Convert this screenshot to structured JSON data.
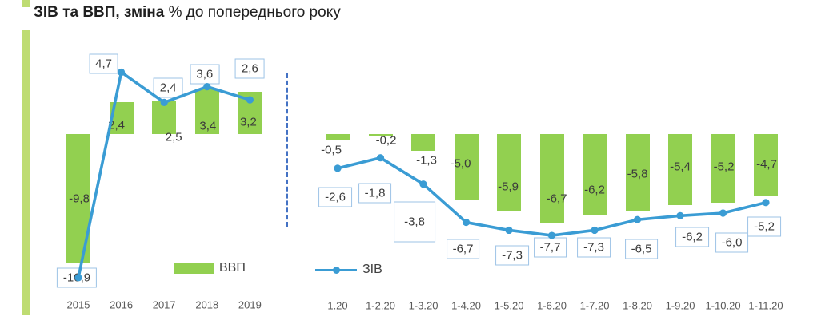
{
  "title": {
    "bold": "ЗІВ та ВВП, зміна",
    "regular": " % до попереднього року"
  },
  "legend": {
    "bars": "ВВП",
    "line": "ЗІВ"
  },
  "colors": {
    "bar_green": "#92D050",
    "accent_green": "#BEDC72",
    "line_blue": "#3A9CD4",
    "label_box_border": "#9DC3E6",
    "divider_blue": "#4472C4"
  },
  "chart_data": [
    {
      "type": "bar",
      "note": "combined bar+line, yearly panel",
      "unit": "%",
      "ylim": [
        -12,
        6
      ],
      "grid": false,
      "categories": [
        "2015",
        "2016",
        "2017",
        "2018",
        "2019"
      ],
      "series": [
        {
          "name": "ВВП",
          "kind": "bar",
          "values": [
            -9.8,
            2.4,
            2.5,
            3.4,
            3.2
          ],
          "labels": [
            "-9,8",
            "2,4",
            "2,5",
            "3,4",
            "3,2"
          ]
        },
        {
          "name": "ЗІВ",
          "kind": "line",
          "values": [
            -10.9,
            4.7,
            2.4,
            3.6,
            2.6
          ],
          "labels": [
            "-10,9",
            "4,7",
            "2,4",
            "3,6",
            "2,6"
          ]
        }
      ]
    },
    {
      "type": "bar",
      "note": "combined bar+line, cumulative monthly 2020 panel",
      "unit": "%",
      "ylim": [
        -9,
        0
      ],
      "grid": false,
      "categories": [
        "1.20",
        "1-2.20",
        "1-3.20",
        "1-4.20",
        "1-5.20",
        "1-6.20",
        "1-7.20",
        "1-8.20",
        "1-9.20",
        "1-10.20",
        "1-11.20"
      ],
      "series": [
        {
          "name": "ВВП",
          "kind": "bar",
          "values": [
            -0.5,
            -0.2,
            -1.3,
            -5.0,
            -5.9,
            -6.7,
            -6.2,
            -5.8,
            -5.4,
            -5.2,
            -4.7
          ],
          "labels": [
            "-0,5",
            "-0,2",
            "-1,3",
            "-5,0",
            "-5,9",
            "-6,7",
            "-6,2",
            "-5,8",
            "-5,4",
            "-5,2",
            "-4,7"
          ]
        },
        {
          "name": "ЗІВ",
          "kind": "line",
          "values": [
            -2.6,
            -1.8,
            -3.8,
            -6.7,
            -7.3,
            -7.7,
            -7.3,
            -6.5,
            -6.2,
            -6.0,
            -5.2
          ],
          "labels": [
            "-2,6",
            "-1,8",
            "-3,8",
            "-6,7",
            "-7,3",
            "-7,7",
            "-7,3",
            "-6,5",
            "-6,2",
            "-6,0",
            "-5,2"
          ]
        }
      ]
    }
  ]
}
